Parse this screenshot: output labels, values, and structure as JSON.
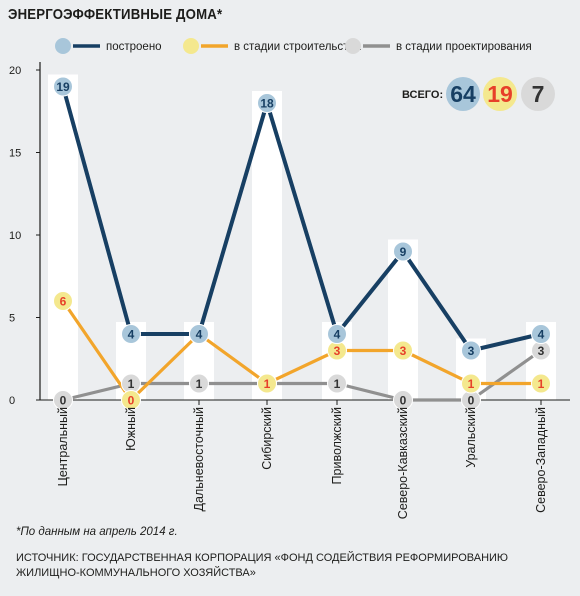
{
  "title": "ЭНЕРГОЭФФЕКТИВНЫЕ ДОМА*",
  "footnote": "*По данным на апрель 2014 г.",
  "source": "ИСТОЧНИК: ГОСУДАРСТВЕННАЯ КОРПОРАЦИЯ «ФОНД СОДЕЙСТВИЯ РЕФОРМИРОВАНИЮ ЖИЛИЩНО-КОММУНАЛЬНОГО ХОЗЯЙСТВА»",
  "totals": {
    "label": "ВСЕГО:",
    "values": [
      "64",
      "19",
      "7"
    ]
  },
  "chart_data": {
    "type": "line",
    "categories": [
      "Центральный",
      "Южный",
      "Дальневосточный",
      "Сибирский",
      "Приволжский",
      "Северо-Кавказский",
      "Уральский",
      "Северо-Западный"
    ],
    "series": [
      {
        "name": "построено",
        "values": [
          19,
          4,
          4,
          18,
          4,
          9,
          3,
          4
        ],
        "line_color": "#173f63",
        "marker_color": "#a8c6da",
        "label_color": "#173f63"
      },
      {
        "name": "в стадии строительства",
        "values": [
          6,
          0,
          4,
          1,
          3,
          3,
          1,
          1
        ],
        "line_color": "#f2a52b",
        "marker_color": "#f4e88e",
        "label_color": "#e7402a"
      },
      {
        "name": "в стадии проектирования",
        "values": [
          0,
          1,
          1,
          1,
          1,
          0,
          0,
          3
        ],
        "line_color": "#909090",
        "marker_color": "#d9d9d9",
        "label_color": "#333333"
      }
    ],
    "ylim": [
      0,
      20
    ],
    "yticks": [
      0,
      5,
      10,
      15,
      20
    ],
    "background_bars": "white column behind each category, height = max value of the category",
    "legend_position": "top",
    "grid": false
  }
}
